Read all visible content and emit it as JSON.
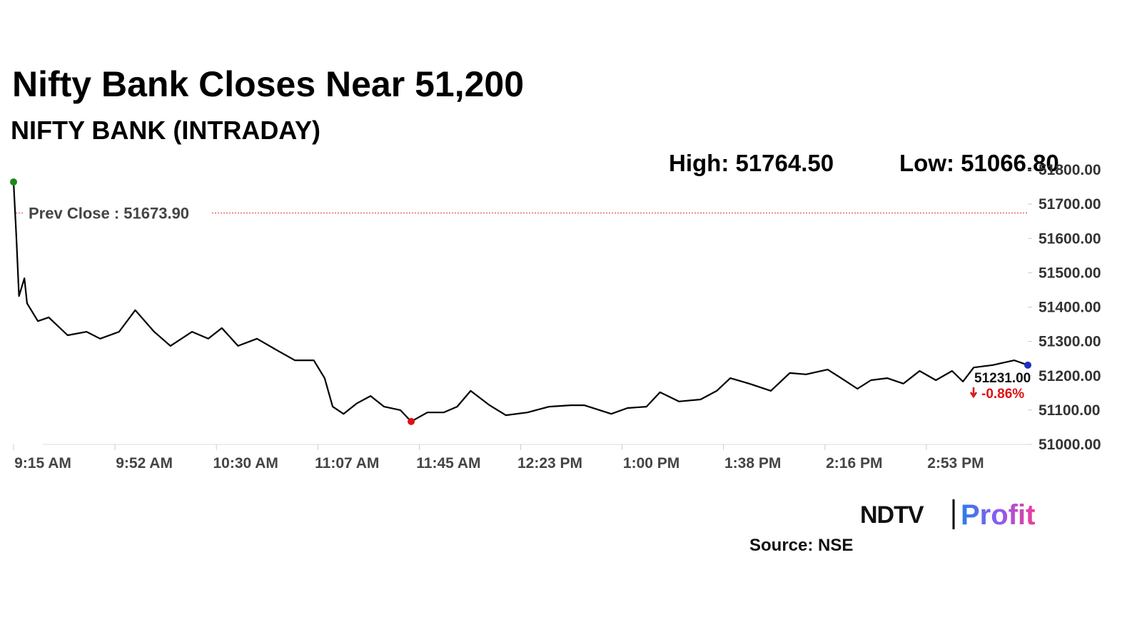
{
  "chart_data": {
    "type": "line",
    "title": "Nifty Bank Closes Near 51,200",
    "subtitle": "NIFTY BANK (INTRADAY)",
    "high": {
      "value": 51764.5,
      "label": "High: 51764.50"
    },
    "low": {
      "value": 51066.8,
      "label": "Low: 51066.80"
    },
    "prev_close": {
      "value": 51673.9,
      "label": "Prev Close : 51673.90"
    },
    "last": {
      "value": 51231,
      "label": "51231.00"
    },
    "change": {
      "value": -0.86,
      "label": "-0.86%"
    },
    "source": "Source: NSE",
    "logo": [
      "NDTV",
      "Profit"
    ],
    "x": [
      0,
      1,
      2,
      4,
      5,
      9,
      13,
      20,
      27,
      32,
      39,
      45,
      52,
      58,
      66,
      72,
      77,
      83,
      90,
      97,
      104,
      111,
      115,
      118,
      122,
      127,
      132,
      137,
      143,
      147,
      153,
      159,
      164,
      169,
      176,
      182,
      190,
      198,
      206,
      211,
      221,
      227,
      234,
      239,
      246,
      254,
      260,
      265,
      272,
      280,
      287,
      293,
      301,
      306,
      312,
      317,
      323,
      329,
      335,
      341,
      347,
      351,
      355,
      362,
      370,
      375
    ],
    "series": [
      {
        "name": "NIFTY BANK",
        "color": "#000000",
        "values": [
          51764.5,
          51609,
          51432,
          51484,
          51411,
          51359,
          51370,
          51318,
          51328,
          51308,
          51328,
          51391,
          51328,
          51287,
          51328,
          51308,
          51339,
          51287,
          51308,
          51276,
          51245,
          51245,
          51193,
          51110,
          51089,
          51120,
          51141,
          51110,
          51100,
          51066.8,
          51093,
          51093,
          51110,
          51156,
          51114,
          51085,
          51093,
          51110,
          51114,
          51114,
          51089,
          51106,
          51110,
          51152,
          51125,
          51131,
          51156,
          51193,
          51177,
          51156,
          51208,
          51204,
          51218,
          51193,
          51162,
          51187,
          51193,
          51177,
          51214,
          51187,
          51214,
          51183,
          51224,
          51231,
          51245,
          51231
        ]
      }
    ],
    "xlim": [
      0,
      375
    ],
    "xticks": [
      {
        "value": 0,
        "label": "9:15 AM"
      },
      {
        "value": 37.5,
        "label": "9:52 AM"
      },
      {
        "value": 75,
        "label": "10:30 AM"
      },
      {
        "value": 112.5,
        "label": "11:07 AM"
      },
      {
        "value": 150,
        "label": "11:45 AM"
      },
      {
        "value": 187.5,
        "label": "12:23 PM"
      },
      {
        "value": 225,
        "label": "1:00 PM"
      },
      {
        "value": 262.5,
        "label": "1:38 PM"
      },
      {
        "value": 300,
        "label": "2:16 PM"
      },
      {
        "value": 337.5,
        "label": "2:53 PM"
      }
    ],
    "ylim": [
      51000,
      51800
    ],
    "yticks": [
      {
        "value": 51000,
        "label": "51000.00"
      },
      {
        "value": 51100,
        "label": "51100.00"
      },
      {
        "value": 51200,
        "label": "51200.00"
      },
      {
        "value": 51300,
        "label": "51300.00"
      },
      {
        "value": 51400,
        "label": "51400.00"
      },
      {
        "value": 51500,
        "label": "51500.00"
      },
      {
        "value": 51600,
        "label": "51600.00"
      },
      {
        "value": 51700,
        "label": "51700.00"
      },
      {
        "value": 51800,
        "label": "51800.00"
      }
    ]
  }
}
